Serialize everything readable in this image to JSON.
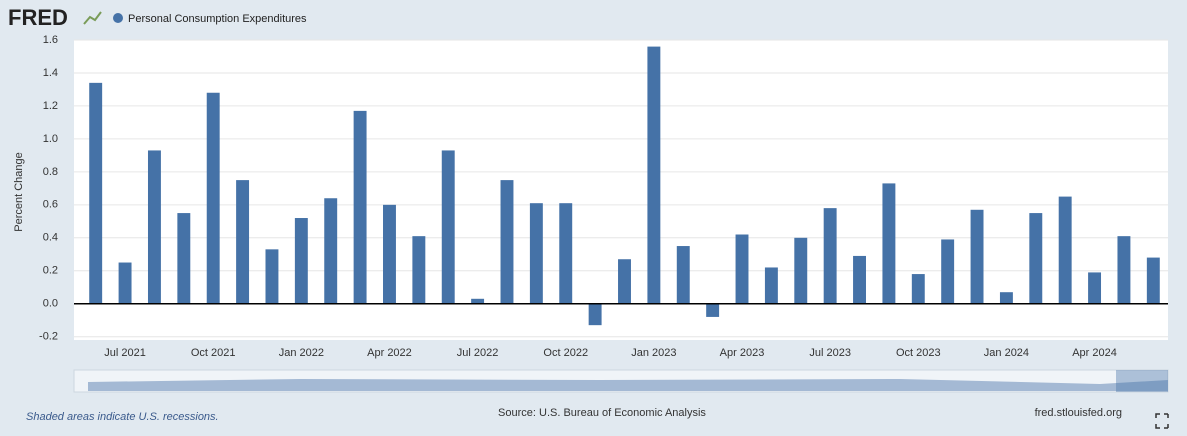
{
  "chart_data": {
    "type": "bar",
    "logo": "FRED",
    "legend": "Personal Consumption Expenditures",
    "ylabel": "Percent Change",
    "source": "Source: U.S. Bureau of Economic Analysis",
    "note": "Shaded areas indicate U.S. recessions.",
    "site": "fred.stlouisfed.org",
    "color": "#4572a7",
    "grid": true,
    "categories": [
      null,
      "Jul 2021",
      null,
      null,
      "Oct 2021",
      null,
      null,
      "Jan 2022",
      null,
      null,
      "Apr 2022",
      null,
      null,
      "Jul 2022",
      null,
      null,
      "Oct 2022",
      null,
      null,
      "Jan 2023",
      null,
      null,
      "Apr 2023",
      null,
      null,
      "Jul 2023",
      null,
      null,
      "Oct 2023",
      null,
      null,
      "Jan 2024",
      null,
      null,
      "Apr 2024",
      null,
      null
    ],
    "values": [
      1.34,
      0.25,
      0.93,
      0.55,
      1.28,
      0.75,
      0.33,
      0.52,
      0.64,
      1.17,
      0.6,
      0.41,
      0.93,
      0.03,
      0.75,
      0.61,
      0.61,
      -0.13,
      0.27,
      1.56,
      0.35,
      -0.08,
      0.42,
      0.22,
      0.4,
      0.58,
      0.29,
      0.73,
      0.18,
      0.39,
      0.57,
      0.07,
      0.55,
      0.65,
      0.19,
      0.41,
      0.28
    ],
    "ylim": [
      -0.22,
      1.6
    ],
    "yticks": [
      -0.2,
      {
        "value": 0,
        "label": "0.0"
      },
      0.2,
      0.4,
      0.6,
      0.8,
      {
        "value": 1,
        "label": "1.0"
      },
      1.2,
      1.4,
      1.6
    ]
  }
}
